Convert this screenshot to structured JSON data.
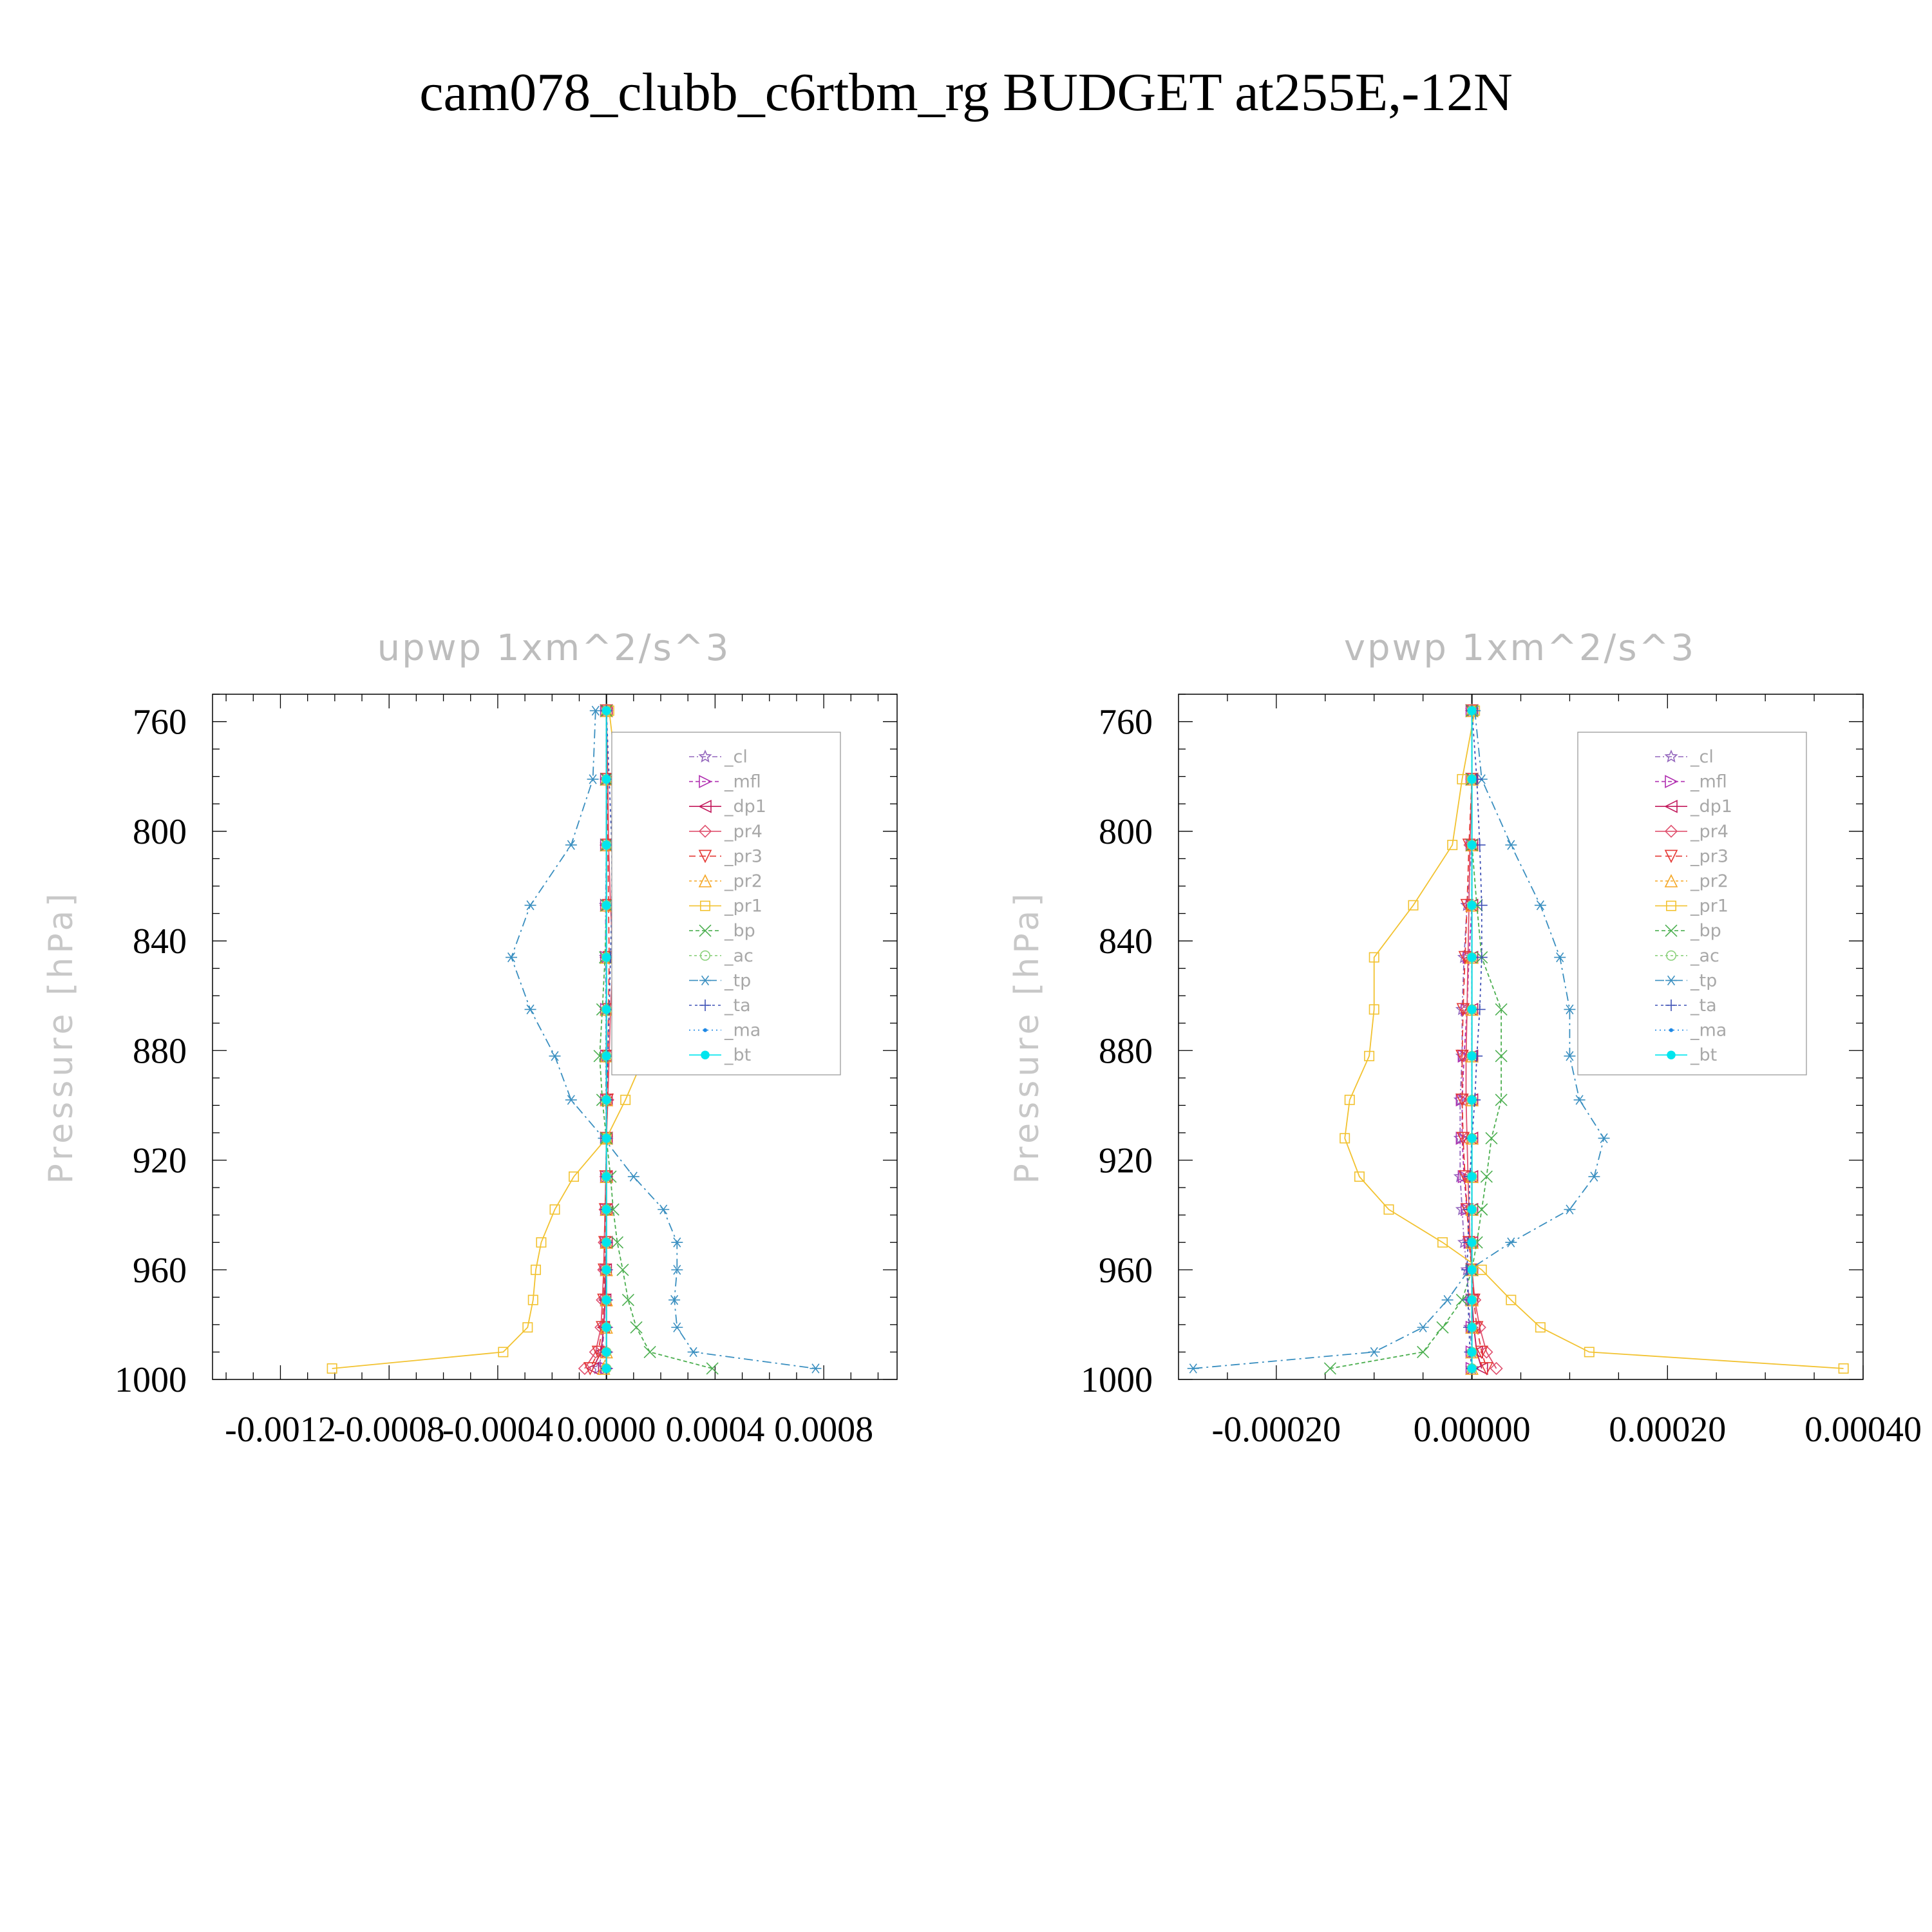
{
  "title": "cam078_clubb_c6rtbm_rg  BUDGET at255E,-12N",
  "series_styles": [
    {
      "key": "cl",
      "color": "#9467bd",
      "marker": "star",
      "dash": "8,4,2,4"
    },
    {
      "key": "mfl",
      "color": "#b02fb0",
      "marker": "tri-right",
      "dash": "6,4"
    },
    {
      "key": "dp1",
      "color": "#c2185b",
      "marker": "tri-left",
      "dash": ""
    },
    {
      "key": "pr4",
      "color": "#e0506e",
      "marker": "diamond",
      "dash": ""
    },
    {
      "key": "pr3",
      "color": "#e53935",
      "marker": "tri-down",
      "dash": "10,6"
    },
    {
      "key": "pr2",
      "color": "#f5a623",
      "marker": "tri-up",
      "dash": "4,4"
    },
    {
      "key": "pr1",
      "color": "#f2c230",
      "marker": "square",
      "dash": ""
    },
    {
      "key": "bp",
      "color": "#4caf50",
      "marker": "x",
      "dash": "6,4"
    },
    {
      "key": "ac",
      "color": "#8bd17c",
      "marker": "circle",
      "dash": "4,4"
    },
    {
      "key": "tp",
      "color": "#3a8fc0",
      "marker": "asterisk",
      "dash": "14,6,3,6"
    },
    {
      "key": "ta",
      "color": "#3f51b5",
      "marker": "plus",
      "dash": "4,5"
    },
    {
      "key": "ma",
      "color": "#1e88e5",
      "marker": "dot",
      "dash": "2,5"
    },
    {
      "key": "bt",
      "color": "#00e5ee",
      "marker": "filled",
      "dash": ""
    }
  ],
  "chart_data": [
    {
      "type": "line",
      "title": "upwp   1xm^2/s^3",
      "ylabel": "Pressure  [hPa]",
      "ylim": [
        1000,
        750
      ],
      "xlim": [
        -0.00145,
        0.00107
      ],
      "yticks": [
        760,
        800,
        840,
        880,
        920,
        960,
        1000
      ],
      "xticks": [
        -0.0012,
        -0.0008,
        -0.0004,
        0.0,
        0.0004,
        0.0008
      ],
      "xtick_labels": [
        "-0.0012",
        "-0.0008",
        "-0.0004",
        "0.0000",
        "0.0004",
        "0.0008"
      ],
      "legend": [
        "_cl",
        "_mfl",
        "_dp1",
        "_pr4",
        "_pr3",
        "_pr2",
        "_pr1",
        "_bp",
        "_ac",
        "_tp",
        "_ta",
        "_ma",
        "_bt"
      ],
      "legend_location": "top-right",
      "pressure": [
        756,
        781,
        805,
        827,
        846,
        865,
        882,
        898,
        912,
        926,
        938,
        950,
        960,
        971,
        981,
        990,
        996
      ],
      "series": [
        {
          "name": "_cl",
          "values": [
            0,
            0,
            0,
            -3e-06,
            -3e-06,
            -2e-06,
            -2e-06,
            -2e-06,
            0,
            0,
            0,
            -2e-06,
            -4e-06,
            -6e-06,
            -8e-06,
            -1.5e-05,
            -3e-05
          ]
        },
        {
          "name": "_mfl",
          "values": [
            0,
            0,
            0,
            0,
            0,
            0,
            0,
            0,
            0,
            0,
            0,
            0,
            0,
            0,
            0,
            0,
            0
          ]
        },
        {
          "name": "_dp1",
          "values": [
            0,
            0,
            0,
            0,
            0,
            0,
            0,
            0,
            0,
            0,
            0,
            0,
            -3e-06,
            -5e-06,
            -1e-05,
            -2e-05,
            -5e-05
          ]
        },
        {
          "name": "_pr4",
          "values": [
            0,
            5e-06,
            8e-06,
            1.5e-05,
            2.5e-05,
            1.5e-05,
            1e-05,
            5e-06,
            0,
            -2e-06,
            -5e-06,
            -8e-06,
            -1e-05,
            -1.5e-05,
            -2e-05,
            -4e-05,
            -8e-05
          ]
        },
        {
          "name": "_pr3",
          "values": [
            0,
            3e-06,
            5e-06,
            8e-06,
            1e-05,
            8e-06,
            5e-06,
            3e-06,
            0,
            -2e-06,
            -4e-06,
            -6e-06,
            -8e-06,
            -1e-05,
            -1.5e-05,
            -3e-05,
            -6e-05
          ]
        },
        {
          "name": "_pr2",
          "values": [
            0,
            0,
            0,
            0,
            0,
            0,
            0,
            0,
            0,
            0,
            0,
            0,
            0,
            0,
            0,
            0,
            -1e-05
          ]
        },
        {
          "name": "_pr1",
          "values": [
            1e-05,
            4e-05,
            0.00012,
            0.00028,
            0.0003,
            0.00022,
            0.00014,
            7e-05,
            0,
            -0.00012,
            -0.00019,
            -0.00024,
            -0.00026,
            -0.00027,
            -0.00029,
            -0.00038,
            -0.00101
          ]
        },
        {
          "name": "_bp",
          "values": [
            0,
            0,
            0,
            0,
            -5e-06,
            -1.5e-05,
            -2.5e-05,
            -1.5e-05,
            0,
            1.5e-05,
            2.5e-05,
            4e-05,
            6e-05,
            8e-05,
            0.00011,
            0.00016,
            0.00039
          ]
        },
        {
          "name": "_ac",
          "values": [
            0,
            0,
            0,
            0,
            0,
            0,
            0,
            0,
            0,
            0,
            0,
            0,
            0,
            0,
            0,
            0,
            0
          ]
        },
        {
          "name": "_tp",
          "values": [
            -4e-05,
            -5e-05,
            -0.00013,
            -0.00028,
            -0.00035,
            -0.00028,
            -0.00019,
            -0.00013,
            -1e-05,
            0.0001,
            0.00021,
            0.00026,
            0.00026,
            0.00025,
            0.00026,
            0.00032,
            0.00077
          ]
        },
        {
          "name": "_ta",
          "values": [
            0,
            1e-05,
            2e-05,
            2e-05,
            1.5e-05,
            1e-05,
            5e-06,
            0,
            0,
            0,
            0,
            0,
            0,
            0,
            0,
            0,
            0
          ]
        },
        {
          "name": "_ma",
          "values": [
            0,
            0,
            0,
            0,
            0,
            0,
            0,
            0,
            0,
            0,
            0,
            0,
            0,
            0,
            0,
            0,
            0
          ]
        },
        {
          "name": "_bt",
          "values": [
            0,
            0,
            0,
            0,
            0,
            0,
            0,
            0,
            0,
            0,
            0,
            0,
            0,
            0,
            0,
            0,
            0
          ]
        }
      ]
    },
    {
      "type": "line",
      "title": "vpwp   1xm^2/s^3",
      "ylabel": "Pressure  [hPa]",
      "ylim": [
        1000,
        750
      ],
      "xlim": [
        -0.0003,
        0.0004
      ],
      "yticks": [
        760,
        800,
        840,
        880,
        920,
        960,
        1000
      ],
      "xticks": [
        -0.0002,
        0.0,
        0.0002,
        0.0004
      ],
      "xtick_labels": [
        "-0.00020",
        "0.00000",
        "0.00020",
        "0.00040"
      ],
      "legend": [
        "_cl",
        "_mfl",
        "_dp1",
        "_pr4",
        "_pr3",
        "_pr2",
        "_pr1",
        "_bp",
        "_ac",
        "_tp",
        "_ta",
        "_ma",
        "_bt"
      ],
      "legend_location": "top-right",
      "pressure": [
        756,
        781,
        805,
        827,
        846,
        865,
        882,
        898,
        912,
        926,
        938,
        950,
        960,
        971,
        981,
        990,
        996
      ],
      "series": [
        {
          "name": "_cl",
          "values": [
            0,
            0,
            0,
            -5e-06,
            -8e-06,
            -1e-05,
            -1e-05,
            -1.2e-05,
            -1.2e-05,
            -1.2e-05,
            -1e-05,
            -8e-06,
            -5e-06,
            -3e-06,
            -2e-06,
            0,
            0
          ]
        },
        {
          "name": "_mfl",
          "values": [
            0,
            0,
            0,
            0,
            -3e-06,
            -5e-06,
            -8e-06,
            -1e-05,
            -1e-05,
            -8e-06,
            -5e-06,
            -2e-06,
            0,
            0,
            0,
            0,
            0
          ]
        },
        {
          "name": "_dp1",
          "values": [
            0,
            0,
            0,
            0,
            0,
            0,
            0,
            0,
            0,
            0,
            0,
            0,
            0,
            0,
            2e-06,
            5e-06,
            1e-05
          ]
        },
        {
          "name": "_pr4",
          "values": [
            0,
            0,
            -2e-06,
            -3e-06,
            -4e-06,
            -5e-06,
            -6e-06,
            -6e-06,
            -5e-06,
            -4e-06,
            -3e-06,
            -2e-06,
            0,
            3e-06,
            8e-06,
            1.5e-05,
            2.5e-05
          ]
        },
        {
          "name": "_pr3",
          "values": [
            0,
            0,
            -3e-06,
            -5e-06,
            -7e-06,
            -9e-06,
            -1e-05,
            -1e-05,
            -9e-06,
            -7e-06,
            -5e-06,
            -3e-06,
            0,
            2e-06,
            5e-06,
            1e-05,
            1.5e-05
          ]
        },
        {
          "name": "_pr2",
          "values": [
            0,
            0,
            0,
            0,
            0,
            0,
            0,
            0,
            0,
            0,
            0,
            0,
            0,
            0,
            0,
            0,
            0
          ]
        },
        {
          "name": "_pr1",
          "values": [
            3e-06,
            -1e-05,
            -2e-05,
            -6e-05,
            -0.0001,
            -0.0001,
            -0.000105,
            -0.000125,
            -0.00013,
            -0.000115,
            -8.5e-05,
            -3e-05,
            1e-05,
            4e-05,
            7e-05,
            0.00012,
            0.00038
          ]
        },
        {
          "name": "_bp",
          "values": [
            0,
            0,
            0,
            5e-06,
            1e-05,
            3e-05,
            3e-05,
            3e-05,
            2e-05,
            1.5e-05,
            1e-05,
            5e-06,
            0,
            -1e-05,
            -3e-05,
            -5e-05,
            -0.000145
          ]
        },
        {
          "name": "_ac",
          "values": [
            0,
            0,
            0,
            0,
            0,
            0,
            0,
            0,
            0,
            0,
            0,
            0,
            0,
            0,
            0,
            0,
            0
          ]
        },
        {
          "name": "_tp",
          "values": [
            3e-06,
            1e-05,
            4e-05,
            7e-05,
            9e-05,
            0.0001,
            0.0001,
            0.00011,
            0.000135,
            0.000125,
            0.0001,
            4e-05,
            -3e-06,
            -2.5e-05,
            -5e-05,
            -0.0001,
            -0.000285
          ]
        },
        {
          "name": "_ta",
          "values": [
            0,
            5e-06,
            8e-06,
            1e-05,
            1e-05,
            8e-06,
            5e-06,
            3e-06,
            0,
            -2e-06,
            -3e-06,
            -4e-06,
            -5e-06,
            -4e-06,
            -3e-06,
            -2e-06,
            0
          ]
        },
        {
          "name": "_ma",
          "values": [
            0,
            0,
            0,
            0,
            0,
            0,
            0,
            0,
            0,
            0,
            0,
            0,
            0,
            0,
            0,
            0,
            0
          ]
        },
        {
          "name": "_bt",
          "values": [
            0,
            0,
            0,
            0,
            0,
            0,
            0,
            0,
            0,
            0,
            0,
            0,
            0,
            0,
            0,
            0,
            0
          ]
        }
      ]
    }
  ]
}
